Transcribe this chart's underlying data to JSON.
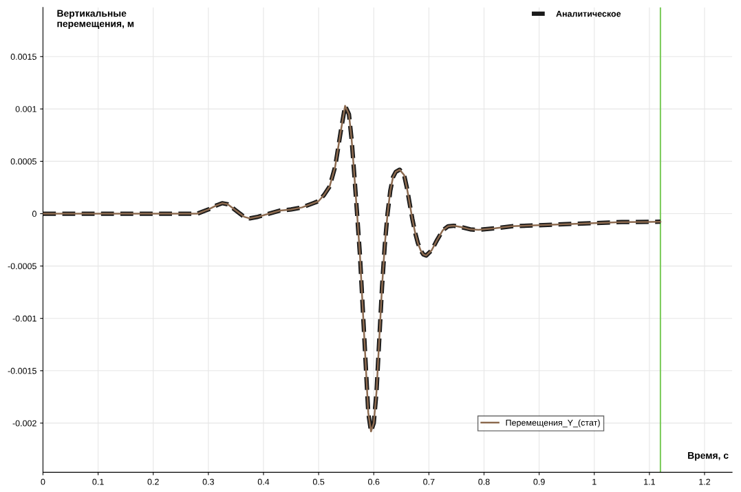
{
  "chart_data": {
    "type": "line",
    "xlabel": "Время, с",
    "ylabel": "Вертикальные\nперемещения, м",
    "x": [
      0,
      0.05,
      0.1,
      0.15,
      0.2,
      0.25,
      0.28,
      0.3,
      0.315,
      0.325,
      0.335,
      0.35,
      0.365,
      0.375,
      0.39,
      0.41,
      0.43,
      0.45,
      0.47,
      0.49,
      0.5,
      0.51,
      0.52,
      0.53,
      0.54,
      0.548,
      0.555,
      0.56,
      0.565,
      0.57,
      0.575,
      0.58,
      0.585,
      0.59,
      0.595,
      0.6,
      0.605,
      0.61,
      0.615,
      0.62,
      0.625,
      0.63,
      0.635,
      0.64,
      0.647,
      0.655,
      0.66,
      0.665,
      0.67,
      0.675,
      0.68,
      0.685,
      0.69,
      0.695,
      0.705,
      0.715,
      0.725,
      0.735,
      0.745,
      0.76,
      0.775,
      0.79,
      0.82,
      0.85,
      0.9,
      0.95,
      1.0,
      1.05,
      1.1,
      1.12
    ],
    "series": [
      {
        "name": "Аналитическое",
        "color": "#1a1a1a",
        "line_style": "dashed",
        "values": [
          0,
          0,
          0,
          0,
          0,
          0,
          0,
          4e-05,
          8e-05,
          0.0001,
          9e-05,
          3e-05,
          -3e-05,
          -4.5e-05,
          -3e-05,
          0.0,
          3e-05,
          4e-05,
          6e-05,
          0.0001,
          0.00012,
          0.00018,
          0.00026,
          0.00045,
          0.00078,
          0.00103,
          0.00095,
          0.0007,
          0.00035,
          -2e-05,
          -0.0004,
          -0.0009,
          -0.0014,
          -0.0019,
          -0.00208,
          -0.002,
          -0.0017,
          -0.0012,
          -0.0007,
          -0.0003,
          0.0,
          0.00022,
          0.00035,
          0.0004,
          0.00042,
          0.00037,
          0.00025,
          0.0001,
          -5e-05,
          -0.00018,
          -0.00028,
          -0.00035,
          -0.00039,
          -0.0004,
          -0.00035,
          -0.00025,
          -0.00016,
          -0.00012,
          -0.000115,
          -0.00013,
          -0.00015,
          -0.000155,
          -0.00014,
          -0.00012,
          -0.00011,
          -0.0001,
          -9e-05,
          -8e-05,
          -7.8e-05,
          -7.7e-05
        ]
      },
      {
        "name": "Перемещения_Y_(стат)",
        "color": "#8c6a4f",
        "line_style": "solid",
        "values": [
          0,
          0,
          0,
          0,
          0,
          0,
          0,
          4e-05,
          8e-05,
          0.0001,
          9e-05,
          3e-05,
          -3e-05,
          -4.5e-05,
          -3e-05,
          0.0,
          3e-05,
          4e-05,
          6e-05,
          0.0001,
          0.00012,
          0.00018,
          0.00026,
          0.00045,
          0.00078,
          0.00103,
          0.00095,
          0.0007,
          0.00035,
          -2e-05,
          -0.0004,
          -0.0009,
          -0.0014,
          -0.0019,
          -0.00208,
          -0.002,
          -0.0017,
          -0.0012,
          -0.0007,
          -0.0003,
          0.0,
          0.00022,
          0.00035,
          0.0004,
          0.00042,
          0.00037,
          0.00025,
          0.0001,
          -5e-05,
          -0.00018,
          -0.00028,
          -0.00035,
          -0.00039,
          -0.0004,
          -0.00035,
          -0.00025,
          -0.00016,
          -0.00012,
          -0.000115,
          -0.00013,
          -0.00015,
          -0.000155,
          -0.00014,
          -0.00012,
          -0.00011,
          -0.0001,
          -9e-05,
          -8e-05,
          -7.8e-05,
          -7.7e-05
        ]
      }
    ],
    "xlim": [
      0,
      1.25
    ],
    "xticks": [
      0,
      0.1,
      0.2,
      0.3,
      0.4,
      0.5,
      0.6,
      0.7,
      0.8,
      0.9,
      1,
      1.1,
      1.2
    ],
    "ylim": [
      -0.00247,
      0.00197
    ],
    "yticks": [
      -0.002,
      -0.0015,
      -0.001,
      -0.0005,
      0,
      0.0005,
      0.001,
      0.0015
    ],
    "ref_lines": [
      {
        "axis": "x",
        "value": 1.12,
        "color": "#7ccc5c"
      }
    ],
    "grid": true,
    "legend": "top right"
  }
}
